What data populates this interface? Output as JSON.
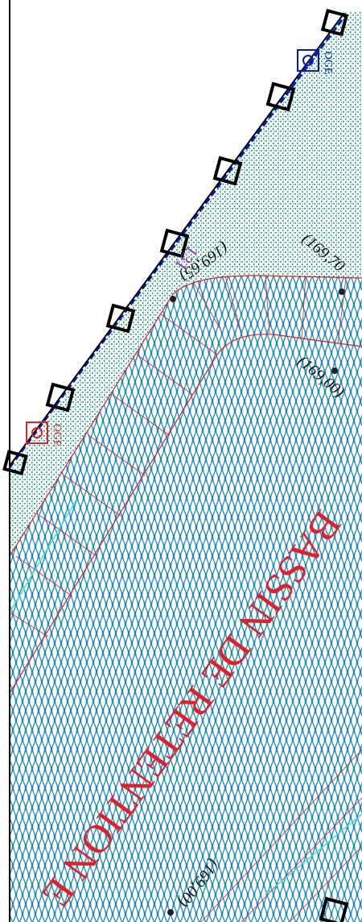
{
  "title": "BASSIN DE RETENTION E",
  "elevations": [
    "(169,65)",
    "(169,70",
    "(169,00)",
    "(169,00)"
  ],
  "codes": [
    "OGE",
    "OGE"
  ],
  "numbers": [
    "131"
  ]
}
